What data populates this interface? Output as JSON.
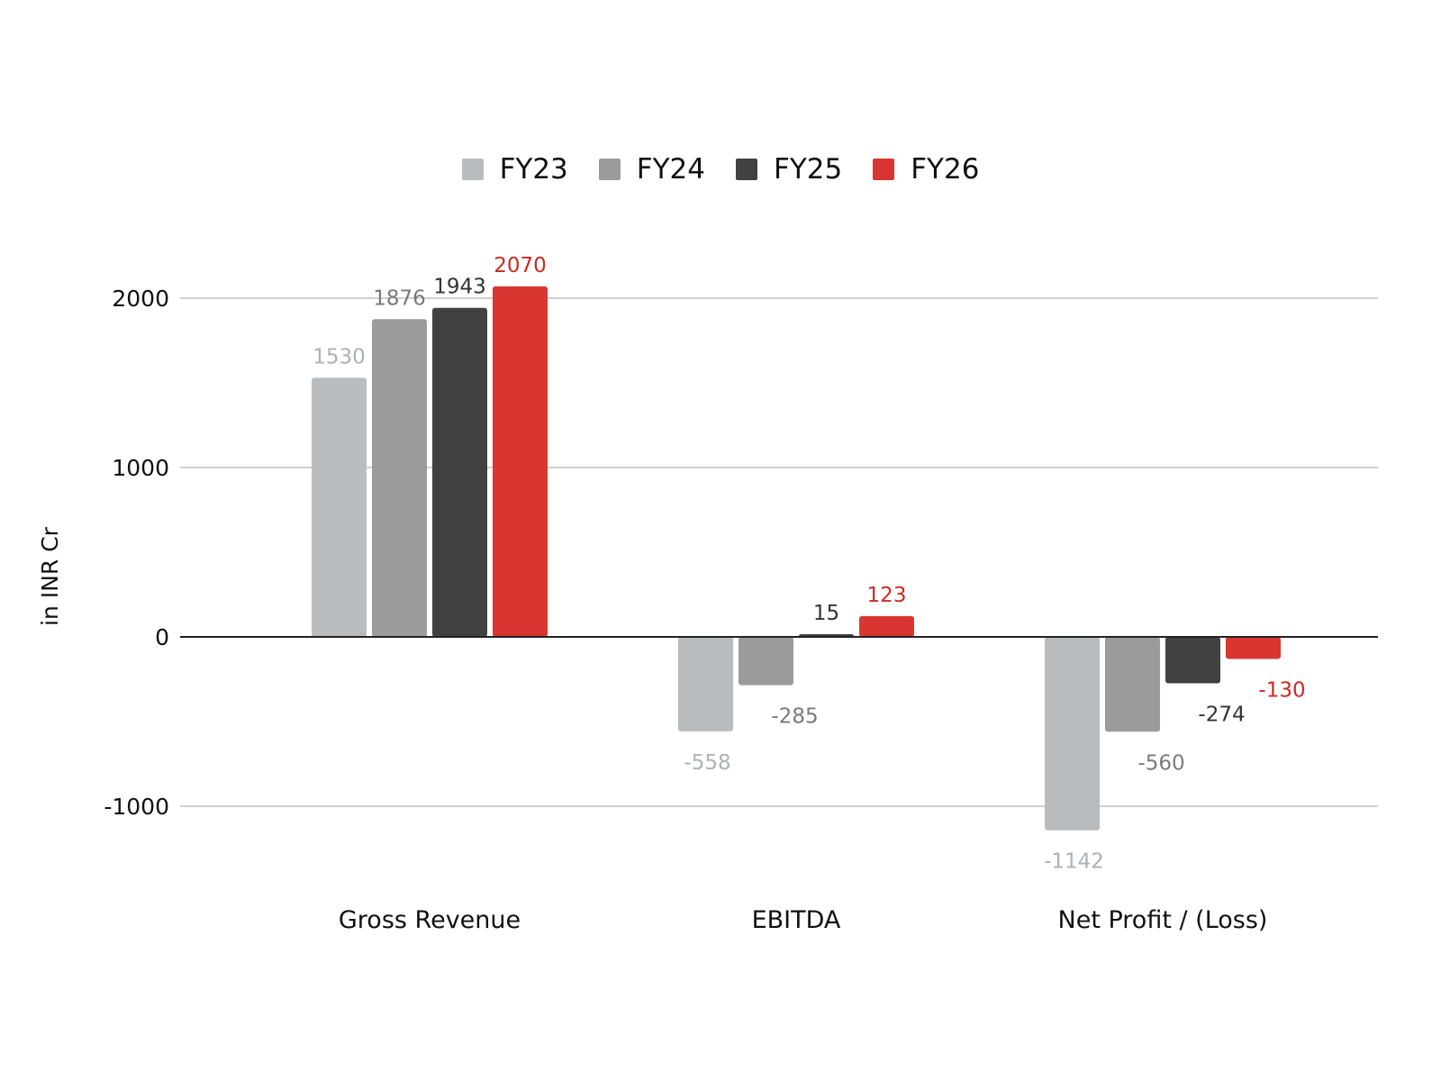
{
  "chart_data": {
    "type": "bar",
    "categories": [
      "Gross Revenue",
      "EBITDA",
      "Net Profit / (Loss)"
    ],
    "series": [
      {
        "name": "FY23",
        "values": [
          1530,
          -558,
          -1142
        ],
        "color": "#b9bcbf",
        "label_color": "#aeb1b4"
      },
      {
        "name": "FY24",
        "values": [
          1876,
          -285,
          -560
        ],
        "color": "#9b9b9b",
        "label_color": "#7a7a7a"
      },
      {
        "name": "FY25",
        "values": [
          1943,
          15,
          -274
        ],
        "color": "#414141",
        "label_color": "#333333"
      },
      {
        "name": "FY26",
        "values": [
          2070,
          123,
          -130
        ],
        "color": "#d93631",
        "label_color": "#cc2a25"
      }
    ],
    "title": "",
    "xlabel": "",
    "ylabel": "in INR Cr",
    "ylim": [
      -1000,
      2000
    ],
    "yticks": [
      2000,
      1000,
      0,
      -1000
    ],
    "grid": true,
    "legend_position": "top-center"
  }
}
